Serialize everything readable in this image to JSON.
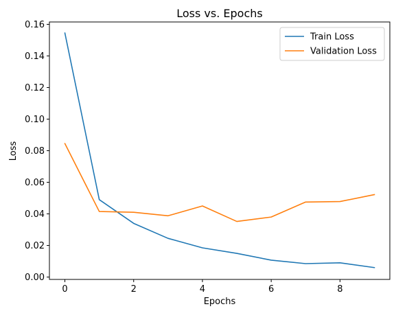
{
  "chart_data": {
    "type": "line",
    "title": "Loss vs. Epochs",
    "xlabel": "Epochs",
    "ylabel": "Loss",
    "xlim": [
      -0.45,
      9.45
    ],
    "ylim": [
      -0.0015,
      0.1615
    ],
    "x": [
      0,
      1,
      2,
      3,
      4,
      5,
      6,
      7,
      8,
      9
    ],
    "xticks": [
      0,
      2,
      4,
      6,
      8
    ],
    "xtick_labels": [
      "0",
      "2",
      "4",
      "6",
      "8"
    ],
    "yticks": [
      0.0,
      0.02,
      0.04,
      0.06,
      0.08,
      0.1,
      0.12,
      0.14,
      0.16
    ],
    "ytick_labels": [
      "0.00",
      "0.02",
      "0.04",
      "0.06",
      "0.08",
      "0.10",
      "0.12",
      "0.14",
      "0.16"
    ],
    "grid": false,
    "legend_position": "top-right",
    "series": [
      {
        "name": "Train Loss",
        "color": "#1f77b4",
        "values": [
          0.1545,
          0.049,
          0.034,
          0.0245,
          0.0185,
          0.015,
          0.0107,
          0.0085,
          0.009,
          0.006
        ]
      },
      {
        "name": "Validation Loss",
        "color": "#ff7f0e",
        "values": [
          0.0845,
          0.0415,
          0.041,
          0.0388,
          0.045,
          0.0352,
          0.038,
          0.0475,
          0.0478,
          0.0522
        ]
      }
    ]
  }
}
